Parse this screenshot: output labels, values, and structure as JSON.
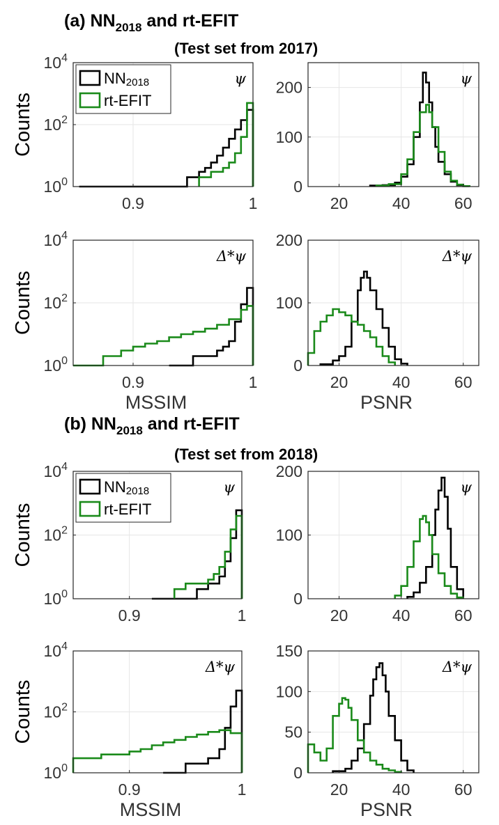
{
  "panel_a": {
    "title": {
      "prefix": "(a) NN",
      "sub": "2018",
      "suffix": " and rt-EFIT"
    },
    "subtitle": "(Test set from 2017)"
  },
  "panel_b": {
    "title": {
      "prefix": "(b) NN",
      "sub": "2018",
      "suffix": " and rt-EFIT"
    },
    "subtitle": "(Test set from 2018)"
  },
  "legend": {
    "nn": {
      "prefix": "NN",
      "sub": "2018"
    },
    "efit": "rt-EFIT"
  },
  "colors": {
    "nn": "#000000",
    "efit": "#1a8a1a"
  },
  "chart_data": [
    {
      "id": "a-mssim-psi",
      "type": "histogram",
      "scale": "log",
      "xlim": [
        0.85,
        1.0
      ],
      "xticks": [
        "0.9",
        "1"
      ],
      "ylim": [
        1,
        10000
      ],
      "ylabel": "Counts",
      "xlabel": "",
      "annotation": "ψ",
      "legend": true,
      "series": [
        {
          "name": "NN2018",
          "color": "#000000",
          "edges": [
            0.855,
            0.88,
            0.905,
            0.925,
            0.94,
            0.945,
            0.95,
            0.955,
            0.96,
            0.965,
            0.97,
            0.975,
            0.98,
            0.985,
            0.99,
            0.995,
            1.0
          ],
          "values": [
            1,
            1,
            1,
            1,
            1,
            2,
            2,
            3,
            4,
            6,
            10,
            18,
            35,
            70,
            140,
            300
          ]
        },
        {
          "name": "rt-EFIT",
          "color": "#1a8a1a",
          "edges": [
            0.955,
            0.96,
            0.965,
            0.97,
            0.975,
            0.98,
            0.985,
            0.99,
            0.995,
            1.0
          ],
          "values": [
            2,
            2,
            3,
            3,
            4,
            6,
            12,
            40,
            500
          ]
        }
      ]
    },
    {
      "id": "a-psnr-psi",
      "type": "histogram",
      "scale": "linear",
      "xlim": [
        10,
        65
      ],
      "xticks": [
        "20",
        "40",
        "60"
      ],
      "ylim": [
        0,
        250
      ],
      "yticks": [
        "0",
        "100",
        "200"
      ],
      "xlabel": "",
      "annotation": "ψ",
      "series": [
        {
          "name": "NN2018",
          "color": "#000000",
          "edges": [
            30,
            34,
            38,
            40,
            42,
            44,
            46,
            47,
            48,
            49,
            50,
            51,
            52,
            54,
            56,
            58,
            60,
            62
          ],
          "values": [
            2,
            3,
            8,
            20,
            45,
            100,
            170,
            230,
            210,
            170,
            120,
            80,
            50,
            25,
            10,
            3,
            1
          ]
        },
        {
          "name": "rt-EFIT",
          "color": "#1a8a1a",
          "edges": [
            32,
            36,
            40,
            42,
            44,
            46,
            48,
            49,
            50,
            52,
            54,
            56,
            58,
            60,
            62
          ],
          "values": [
            2,
            5,
            25,
            55,
            110,
            150,
            165,
            150,
            120,
            70,
            30,
            12,
            4,
            1
          ]
        }
      ]
    },
    {
      "id": "a-mssim-dpsi",
      "type": "histogram",
      "scale": "log",
      "xlim": [
        0.85,
        1.0
      ],
      "xticks": [
        "0.9",
        "1"
      ],
      "ylim": [
        1,
        10000
      ],
      "ylabel": "Counts",
      "xlabel": "MSSIM",
      "annotation": "Δ*ψ",
      "series": [
        {
          "name": "NN2018",
          "color": "#000000",
          "edges": [
            0.93,
            0.95,
            0.96,
            0.97,
            0.975,
            0.98,
            0.985,
            0.99,
            0.995,
            1.0
          ],
          "values": [
            1,
            2,
            2,
            3,
            4,
            6,
            25,
            90,
            300
          ]
        },
        {
          "name": "rt-EFIT",
          "color": "#1a8a1a",
          "edges": [
            0.85,
            0.875,
            0.89,
            0.9,
            0.91,
            0.92,
            0.93,
            0.94,
            0.95,
            0.96,
            0.97,
            0.98,
            0.99,
            0.995,
            1.0
          ],
          "values": [
            1,
            2,
            3,
            4,
            5,
            6,
            8,
            10,
            12,
            15,
            20,
            30,
            60,
            80
          ]
        }
      ]
    },
    {
      "id": "a-psnr-dpsi",
      "type": "histogram",
      "scale": "linear",
      "xlim": [
        10,
        65
      ],
      "xticks": [
        "20",
        "40",
        "60"
      ],
      "ylim": [
        0,
        200
      ],
      "yticks": [
        "0",
        "100",
        "200"
      ],
      "xlabel": "PSNR",
      "annotation": "Δ*ψ",
      "series": [
        {
          "name": "NN2018",
          "color": "#000000",
          "edges": [
            14,
            18,
            20,
            22,
            24,
            26,
            27,
            28,
            29,
            30,
            32,
            34,
            36,
            38,
            40,
            42
          ],
          "values": [
            2,
            8,
            15,
            30,
            70,
            120,
            140,
            150,
            140,
            120,
            90,
            60,
            30,
            10,
            3
          ]
        },
        {
          "name": "rt-EFIT",
          "color": "#1a8a1a",
          "edges": [
            10,
            12,
            14,
            16,
            18,
            20,
            22,
            24,
            26,
            28,
            30,
            32,
            34,
            36,
            38
          ],
          "values": [
            20,
            55,
            70,
            80,
            90,
            85,
            80,
            70,
            65,
            55,
            45,
            30,
            15,
            5
          ]
        }
      ]
    },
    {
      "id": "b-mssim-psi",
      "type": "histogram",
      "scale": "log",
      "xlim": [
        0.85,
        1.0
      ],
      "xticks": [
        "0.9",
        "1"
      ],
      "ylim": [
        1,
        10000
      ],
      "ylabel": "Counts",
      "xlabel": "",
      "annotation": "ψ",
      "legend": true,
      "series": [
        {
          "name": "NN2018",
          "color": "#000000",
          "edges": [
            0.92,
            0.94,
            0.96,
            0.97,
            0.98,
            0.985,
            0.99,
            0.995,
            1.0
          ],
          "values": [
            1,
            1,
            2,
            3,
            5,
            15,
            80,
            600
          ]
        },
        {
          "name": "rt-EFIT",
          "color": "#1a8a1a",
          "edges": [
            0.94,
            0.95,
            0.96,
            0.97,
            0.975,
            0.98,
            0.985,
            0.99,
            0.995,
            1.0
          ],
          "values": [
            2,
            3,
            3,
            4,
            6,
            10,
            30,
            150,
            400
          ]
        }
      ]
    },
    {
      "id": "b-psnr-psi",
      "type": "histogram",
      "scale": "linear",
      "xlim": [
        10,
        65
      ],
      "xticks": [
        "20",
        "40",
        "60"
      ],
      "ylim": [
        0,
        200
      ],
      "yticks": [
        "0",
        "100",
        "200"
      ],
      "xlabel": "",
      "annotation": "ψ",
      "series": [
        {
          "name": "NN2018",
          "color": "#000000",
          "edges": [
            42,
            44,
            46,
            48,
            50,
            51,
            52,
            53,
            54,
            55,
            56,
            58,
            60
          ],
          "values": [
            3,
            10,
            25,
            50,
            100,
            140,
            170,
            190,
            160,
            110,
            50,
            15
          ]
        },
        {
          "name": "rt-EFIT",
          "color": "#1a8a1a",
          "edges": [
            38,
            40,
            42,
            44,
            46,
            47,
            48,
            49,
            50,
            52,
            54,
            56,
            58,
            60
          ],
          "values": [
            5,
            20,
            50,
            90,
            125,
            130,
            120,
            100,
            70,
            40,
            20,
            8,
            2
          ]
        }
      ]
    },
    {
      "id": "b-mssim-dpsi",
      "type": "histogram",
      "scale": "log",
      "xlim": [
        0.85,
        1.0
      ],
      "xticks": [
        "0.9",
        "1"
      ],
      "ylim": [
        1,
        10000
      ],
      "ylabel": "Counts",
      "xlabel": "MSSIM",
      "annotation": "Δ*ψ",
      "series": [
        {
          "name": "NN2018",
          "color": "#000000",
          "edges": [
            0.93,
            0.95,
            0.96,
            0.97,
            0.98,
            0.985,
            0.99,
            0.995,
            1.0
          ],
          "values": [
            1,
            2,
            2,
            3,
            6,
            30,
            150,
            500
          ]
        },
        {
          "name": "rt-EFIT",
          "color": "#1a8a1a",
          "edges": [
            0.85,
            0.875,
            0.89,
            0.9,
            0.91,
            0.92,
            0.93,
            0.94,
            0.95,
            0.96,
            0.97,
            0.98,
            0.99,
            1.0
          ],
          "values": [
            3,
            4,
            4,
            5,
            6,
            8,
            10,
            12,
            15,
            18,
            22,
            25,
            20
          ]
        }
      ]
    },
    {
      "id": "b-psnr-dpsi",
      "type": "histogram",
      "scale": "linear",
      "xlim": [
        10,
        65
      ],
      "xticks": [
        "20",
        "40",
        "60"
      ],
      "ylim": [
        0,
        150
      ],
      "yticks": [
        "0",
        "50",
        "100",
        "150"
      ],
      "xlabel": "PSNR",
      "annotation": "Δ*ψ",
      "series": [
        {
          "name": "NN2018",
          "color": "#000000",
          "edges": [
            18,
            22,
            24,
            26,
            28,
            30,
            31,
            32,
            33,
            34,
            35,
            36,
            38,
            40,
            42,
            44
          ],
          "values": [
            2,
            5,
            15,
            30,
            60,
            95,
            115,
            130,
            135,
            120,
            100,
            70,
            40,
            15,
            3
          ]
        },
        {
          "name": "rt-EFIT",
          "color": "#1a8a1a",
          "edges": [
            10,
            12,
            14,
            16,
            18,
            20,
            21,
            22,
            23,
            24,
            26,
            28,
            30,
            32,
            34,
            36,
            38,
            40
          ],
          "values": [
            35,
            25,
            15,
            30,
            70,
            85,
            92,
            90,
            80,
            65,
            40,
            25,
            15,
            10,
            5,
            3,
            1
          ]
        }
      ]
    }
  ]
}
